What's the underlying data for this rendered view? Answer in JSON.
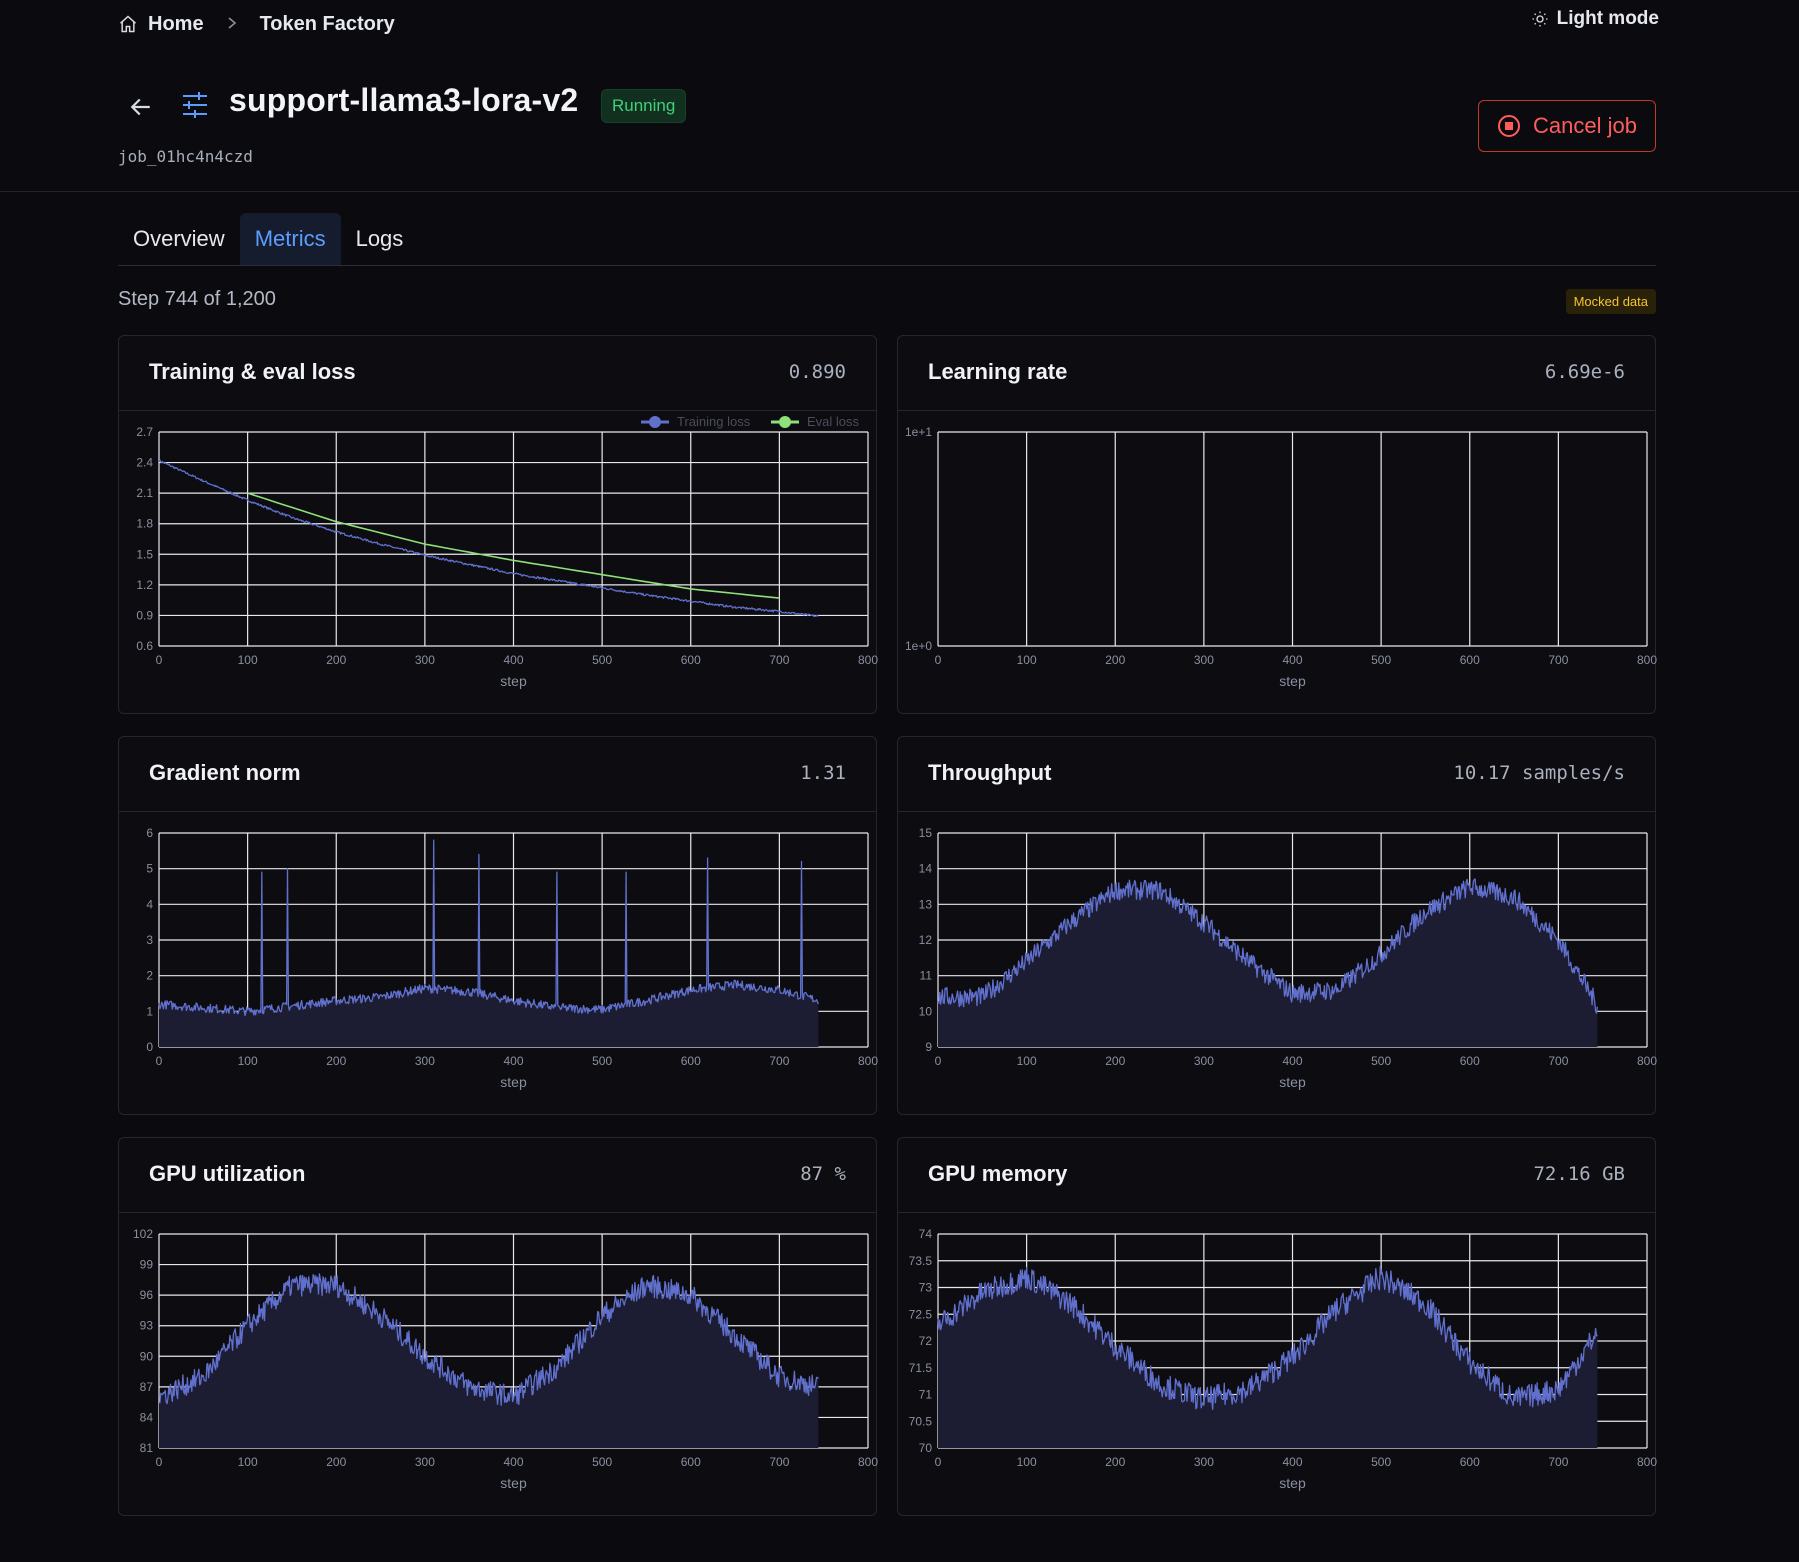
{
  "breadcrumb": {
    "home": "Home",
    "current": "Token Factory"
  },
  "theme_toggle": "Light mode",
  "job": {
    "name": "support-llama3-lora-v2",
    "status": "Running",
    "id": "job_01hc4n4czd",
    "cancel_label": "Cancel job"
  },
  "tabs": [
    "Overview",
    "Metrics",
    "Logs"
  ],
  "active_tab": "Metrics",
  "step_text": "Step 744 of 1,200",
  "mocked_badge": "Mocked data",
  "colors": {
    "accent": "#5b9dff",
    "series": "#6070cc",
    "eval": "#8ee07a",
    "danger": "#ff5d5d",
    "status_ok": "#3fd07a"
  },
  "cards": [
    {
      "title": "Training & eval loss",
      "value": "0.890"
    },
    {
      "title": "Learning rate",
      "value": "6.69e-6"
    },
    {
      "title": "Gradient norm",
      "value": "1.31"
    },
    {
      "title": "Throughput",
      "value": "10.17 samples/s"
    },
    {
      "title": "GPU utilization",
      "value": "87 %"
    },
    {
      "title": "GPU memory",
      "value": "72.16 GB"
    }
  ],
  "chart_data": [
    {
      "type": "line",
      "xlabel": "step",
      "xlim": [
        0,
        800
      ],
      "xticks": [
        "0",
        "100",
        "200",
        "300",
        "400",
        "500",
        "600",
        "700",
        "800"
      ],
      "ylim": [
        0.6,
        2.7
      ],
      "yticks": [
        "0.6",
        "0.9",
        "1.2",
        "1.5",
        "1.8",
        "2.1",
        "2.4",
        "2.7"
      ],
      "legend": "top-right",
      "series": [
        {
          "name": "Training loss",
          "x": [
            0,
            50,
            100,
            150,
            200,
            250,
            300,
            350,
            400,
            450,
            500,
            550,
            600,
            650,
            700,
            744
          ],
          "values": [
            2.42,
            2.22,
            2.03,
            1.86,
            1.72,
            1.6,
            1.49,
            1.4,
            1.31,
            1.24,
            1.17,
            1.1,
            1.04,
            0.98,
            0.94,
            0.89
          ]
        },
        {
          "name": "Eval loss",
          "x": [
            100,
            200,
            300,
            400,
            500,
            600,
            700
          ],
          "values": [
            2.1,
            1.82,
            1.6,
            1.44,
            1.3,
            1.16,
            1.07
          ]
        }
      ]
    },
    {
      "type": "line",
      "xlabel": "step",
      "xlim": [
        0,
        800
      ],
      "xticks": [
        "0",
        "100",
        "200",
        "300",
        "400",
        "500",
        "600",
        "700",
        "800"
      ],
      "yscale": "log",
      "ylim": [
        1,
        10
      ],
      "yticks": [
        "1e+0",
        "1e+1"
      ],
      "series": [
        {
          "x": [],
          "values": []
        }
      ]
    },
    {
      "type": "area",
      "xlabel": "step",
      "xlim": [
        0,
        800
      ],
      "xticks": [
        "0",
        "100",
        "200",
        "300",
        "400",
        "500",
        "600",
        "700",
        "800"
      ],
      "ylim": [
        0,
        6
      ],
      "yticks": [
        "0",
        "1",
        "2",
        "3",
        "4",
        "5",
        "6"
      ],
      "series": [
        {
          "x": [
            0,
            50,
            100,
            150,
            200,
            250,
            300,
            350,
            400,
            450,
            500,
            550,
            600,
            650,
            700,
            744
          ],
          "values": [
            1.2,
            1.1,
            1.0,
            1.15,
            1.3,
            1.4,
            1.65,
            1.55,
            1.3,
            1.1,
            1.05,
            1.3,
            1.6,
            1.75,
            1.6,
            1.31
          ]
        }
      ],
      "spikes": [
        {
          "x": 116,
          "value": 4.9
        },
        {
          "x": 145,
          "value": 5.0
        },
        {
          "x": 310,
          "value": 5.8
        },
        {
          "x": 361,
          "value": 5.4
        },
        {
          "x": 449,
          "value": 4.9
        },
        {
          "x": 527,
          "value": 4.9
        },
        {
          "x": 619,
          "value": 5.3
        },
        {
          "x": 725,
          "value": 5.2
        }
      ]
    },
    {
      "type": "area",
      "xlabel": "step",
      "xlim": [
        0,
        800
      ],
      "xticks": [
        "0",
        "100",
        "200",
        "300",
        "400",
        "500",
        "600",
        "700",
        "800"
      ],
      "ylim": [
        9,
        15
      ],
      "yticks": [
        "9",
        "10",
        "11",
        "12",
        "13",
        "14",
        "15"
      ],
      "series": [
        {
          "x": [
            0,
            50,
            100,
            150,
            200,
            250,
            300,
            350,
            400,
            450,
            500,
            550,
            600,
            650,
            700,
            744
          ],
          "values": [
            10.4,
            10.4,
            11.4,
            12.5,
            13.4,
            13.4,
            12.5,
            11.4,
            10.5,
            10.6,
            11.6,
            12.8,
            13.5,
            13.2,
            12.0,
            10.17
          ]
        }
      ]
    },
    {
      "type": "area",
      "xlabel": "step",
      "xlim": [
        0,
        800
      ],
      "xticks": [
        "0",
        "100",
        "200",
        "300",
        "400",
        "500",
        "600",
        "700",
        "800"
      ],
      "ylim": [
        81,
        102
      ],
      "yticks": [
        "81",
        "84",
        "87",
        "90",
        "93",
        "96",
        "99",
        "102"
      ],
      "series": [
        {
          "x": [
            0,
            50,
            100,
            150,
            200,
            250,
            300,
            350,
            400,
            450,
            500,
            550,
            600,
            650,
            700,
            744
          ],
          "values": [
            86,
            88,
            93,
            97,
            97,
            94,
            90,
            87,
            86,
            89,
            94,
            97,
            96,
            92,
            88,
            87
          ]
        }
      ]
    },
    {
      "type": "area",
      "xlabel": "step",
      "xlim": [
        0,
        800
      ],
      "xticks": [
        "0",
        "100",
        "200",
        "300",
        "400",
        "500",
        "600",
        "700",
        "800"
      ],
      "ylim": [
        70,
        74
      ],
      "yticks": [
        "70",
        "70.5",
        "71",
        "71.5",
        "72",
        "72.5",
        "73",
        "73.5",
        "74"
      ],
      "series": [
        {
          "x": [
            0,
            50,
            100,
            150,
            200,
            250,
            300,
            350,
            400,
            450,
            500,
            550,
            600,
            650,
            700,
            744
          ],
          "values": [
            72.3,
            72.9,
            73.2,
            72.7,
            71.9,
            71.2,
            70.9,
            71.1,
            71.7,
            72.6,
            73.2,
            72.7,
            71.6,
            70.9,
            71.1,
            72.16
          ]
        }
      ]
    }
  ]
}
